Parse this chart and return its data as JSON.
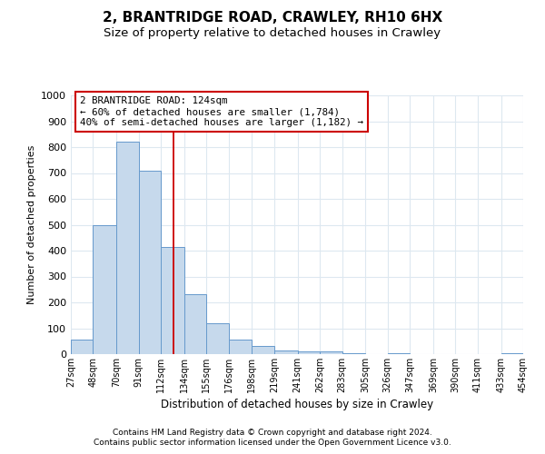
{
  "title1": "2, BRANTRIDGE ROAD, CRAWLEY, RH10 6HX",
  "title2": "Size of property relative to detached houses in Crawley",
  "xlabel": "Distribution of detached houses by size in Crawley",
  "ylabel": "Number of detached properties",
  "bin_edges": [
    27,
    48,
    70,
    91,
    112,
    134,
    155,
    176,
    198,
    219,
    241,
    262,
    283,
    305,
    326,
    347,
    369,
    390,
    411,
    433,
    454
  ],
  "bar_heights": [
    55,
    500,
    820,
    710,
    415,
    230,
    118,
    55,
    33,
    15,
    10,
    10,
    5,
    0,
    5,
    0,
    0,
    0,
    0,
    5
  ],
  "bar_color": "#c6d9ec",
  "bar_edge_color": "#6699cc",
  "property_line_x": 124,
  "property_line_color": "#cc0000",
  "annotation_line1": "2 BRANTRIDGE ROAD: 124sqm",
  "annotation_line2": "← 60% of detached houses are smaller (1,784)",
  "annotation_line3": "40% of semi-detached houses are larger (1,182) →",
  "annotation_box_edgecolor": "#cc0000",
  "ylim": [
    0,
    1000
  ],
  "yticks": [
    0,
    100,
    200,
    300,
    400,
    500,
    600,
    700,
    800,
    900,
    1000
  ],
  "footnote1": "Contains HM Land Registry data © Crown copyright and database right 2024.",
  "footnote2": "Contains public sector information licensed under the Open Government Licence v3.0.",
  "bg_color": "#ffffff",
  "plot_bg_color": "#ffffff",
  "grid_color": "#dde8f0",
  "title1_fontsize": 11,
  "title2_fontsize": 9.5
}
